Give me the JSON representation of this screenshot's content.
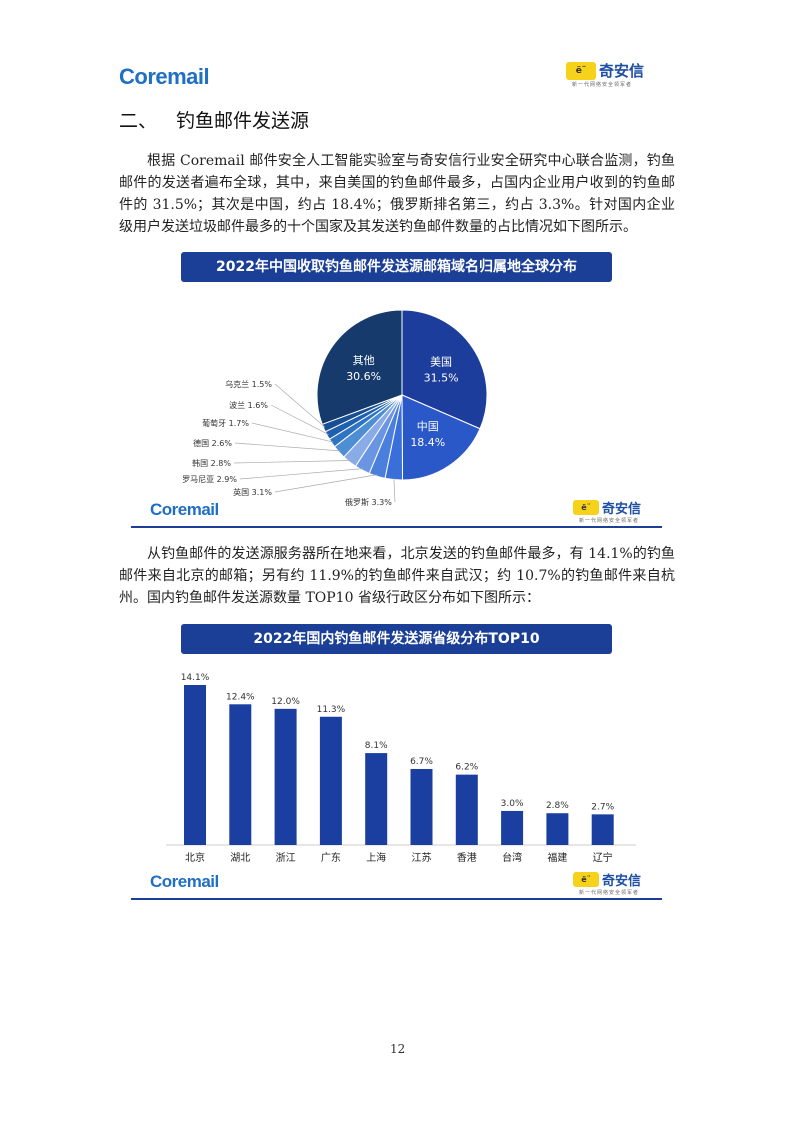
{
  "header": {
    "left_logo": "Coremail",
    "right_logo_mark": "ë¨",
    "right_logo_name": "奇安信",
    "right_logo_sub": "新一代网络安全领军者"
  },
  "section": {
    "number": "二、",
    "title": "钓鱼邮件发送源"
  },
  "para1": "根据 Coremail 邮件安全人工智能实验室与奇安信行业安全研究中心联合监测，钓鱼邮件的发送者遍布全球，其中，来自美国的钓鱼邮件最多，占国内企业用户收到的钓鱼邮件的 31.5%；其次是中国，约占 18.4%；俄罗斯排名第三，约占 3.3%。针对国内企业级用户发送垃圾邮件最多的十个国家及其发送钓鱼邮件数量的占比情况如下图所示。",
  "para2": "从钓鱼邮件的发送源服务器所在地来看，北京发送的钓鱼邮件最多，有 14.1%的钓鱼邮件来自北京的邮箱；另有约 11.9%的钓鱼邮件来自武汉；约 10.7%的钓鱼邮件来自杭州。国内钓鱼邮件发送源数量 TOP10 省级行政区分布如下图所示：",
  "figure1": {
    "footer_logo": "Coremail",
    "footer_mark": "ë¨",
    "footer_name": "奇安信",
    "footer_sub": "新一代网络安全领军者"
  },
  "figure2": {
    "footer_logo": "Coremail",
    "footer_mark": "ë¨",
    "footer_name": "奇安信",
    "footer_sub": "新一代网络安全领军者"
  },
  "page_number": "12",
  "chart_data": [
    {
      "type": "pie",
      "title": "2022年中国收取钓鱼邮件发送源邮箱域名归属地全球分布",
      "slices": [
        {
          "label": "美国",
          "value": 31.5,
          "text": "31.5%",
          "color": "#1c3d9b"
        },
        {
          "label": "中国",
          "value": 18.4,
          "text": "18.4%",
          "color": "#2a58c8"
        },
        {
          "label": "俄罗斯",
          "value": 3.3,
          "text": "3.3%",
          "color": "#3a6ed8"
        },
        {
          "label": "英国",
          "value": 3.1,
          "text": "3.1%",
          "color": "#4b7fdc"
        },
        {
          "label": "罗马尼亚",
          "value": 2.9,
          "text": "2.9%",
          "color": "#6a95e2"
        },
        {
          "label": "韩国",
          "value": 2.8,
          "text": "2.8%",
          "color": "#89abe8"
        },
        {
          "label": "德国",
          "value": 2.6,
          "text": "2.6%",
          "color": "#4e8fd4"
        },
        {
          "label": "葡萄牙",
          "value": 1.7,
          "text": "1.7%",
          "color": "#2e74c4"
        },
        {
          "label": "波兰",
          "value": 1.6,
          "text": "1.6%",
          "color": "#1f5fae"
        },
        {
          "label": "乌克兰",
          "value": 1.5,
          "text": "1.5%",
          "color": "#164f94"
        },
        {
          "label": "其他",
          "value": 30.6,
          "text": "30.6%",
          "color": "#153a6b"
        }
      ]
    },
    {
      "type": "bar",
      "title": "2022年国内钓鱼邮件发送源省级分布TOP10",
      "categories": [
        "北京",
        "湖北",
        "浙江",
        "广东",
        "上海",
        "江苏",
        "香港",
        "台湾",
        "福建",
        "辽宁"
      ],
      "values": [
        14.1,
        12.4,
        12.0,
        11.3,
        8.1,
        6.7,
        6.2,
        3.0,
        2.8,
        2.7
      ],
      "value_labels": [
        "14.1%",
        "12.4%",
        "12.0%",
        "11.3%",
        "8.1%",
        "6.7%",
        "6.2%",
        "3.0%",
        "2.8%",
        "2.7%"
      ],
      "color": "#1b3fa0"
    }
  ]
}
